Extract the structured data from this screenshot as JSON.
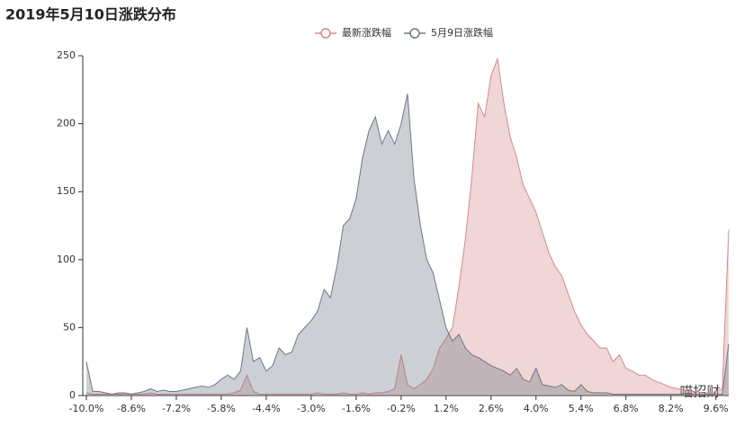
{
  "chart_data": {
    "type": "area",
    "title": "2019年5月10日涨跌分布",
    "watermark": "喵招财",
    "x": [
      -10.0,
      -9.8,
      -9.6,
      -9.4,
      -9.2,
      -9.0,
      -8.8,
      -8.6,
      -8.4,
      -8.2,
      -8.0,
      -7.8,
      -7.6,
      -7.4,
      -7.2,
      -7.0,
      -6.8,
      -6.6,
      -6.4,
      -6.2,
      -6.0,
      -5.8,
      -5.6,
      -5.4,
      -5.2,
      -5.0,
      -4.8,
      -4.6,
      -4.4,
      -4.2,
      -4.0,
      -3.8,
      -3.6,
      -3.4,
      -3.2,
      -3.0,
      -2.8,
      -2.6,
      -2.4,
      -2.2,
      -2.0,
      -1.8,
      -1.6,
      -1.4,
      -1.2,
      -1.0,
      -0.8,
      -0.6,
      -0.4,
      -0.2,
      0.0,
      0.2,
      0.4,
      0.6,
      0.8,
      1.0,
      1.2,
      1.4,
      1.6,
      1.8,
      2.0,
      2.2,
      2.4,
      2.6,
      2.8,
      3.0,
      3.2,
      3.4,
      3.6,
      3.8,
      4.0,
      4.2,
      4.4,
      4.6,
      4.8,
      5.0,
      5.2,
      5.4,
      5.6,
      5.8,
      6.0,
      6.2,
      6.4,
      6.6,
      6.8,
      7.0,
      7.2,
      7.4,
      7.6,
      7.8,
      8.0,
      8.2,
      8.4,
      8.6,
      8.8,
      9.0,
      9.2,
      9.4,
      9.6,
      9.8,
      10.0
    ],
    "series": [
      {
        "name": "最新涨跌幅",
        "color": "#d48a8a",
        "values": [
          2,
          1,
          1,
          1,
          1,
          1,
          1,
          1,
          1,
          1,
          2,
          1,
          1,
          1,
          1,
          1,
          1,
          1,
          1,
          1,
          1,
          1,
          1,
          2,
          4,
          15,
          3,
          1,
          1,
          1,
          1,
          1,
          1,
          1,
          1,
          1,
          2,
          1,
          1,
          1,
          2,
          1,
          1,
          2,
          1,
          2,
          2,
          3,
          5,
          30,
          8,
          5,
          8,
          12,
          20,
          35,
          42,
          50,
          80,
          115,
          160,
          215,
          205,
          235,
          248,
          215,
          190,
          175,
          155,
          145,
          135,
          120,
          105,
          95,
          88,
          75,
          62,
          52,
          45,
          40,
          35,
          35,
          25,
          30,
          20,
          18,
          15,
          15,
          12,
          10,
          8,
          6,
          5,
          4,
          3,
          3,
          2,
          2,
          3,
          5,
          122
        ]
      },
      {
        "name": "5月9日涨跌幅",
        "color": "#6e7886",
        "values": [
          25,
          3,
          3,
          2,
          1,
          2,
          2,
          1,
          2,
          3,
          5,
          3,
          4,
          3,
          3,
          4,
          5,
          6,
          7,
          6,
          8,
          12,
          15,
          12,
          18,
          50,
          25,
          28,
          18,
          22,
          35,
          30,
          32,
          45,
          50,
          55,
          62,
          78,
          72,
          95,
          125,
          130,
          145,
          175,
          195,
          205,
          185,
          195,
          185,
          200,
          222,
          160,
          125,
          100,
          90,
          70,
          50,
          40,
          45,
          35,
          30,
          28,
          25,
          22,
          20,
          18,
          15,
          20,
          12,
          10,
          20,
          8,
          7,
          6,
          8,
          4,
          3,
          8,
          3,
          2,
          2,
          2,
          1,
          1,
          1,
          1,
          1,
          1,
          1,
          1,
          1,
          1,
          1,
          1,
          1,
          1,
          1,
          1,
          1,
          1,
          38
        ]
      }
    ],
    "xlim": [
      -10,
      10
    ],
    "xticks": [
      {
        "value": -10,
        "label": "-10.0%"
      },
      {
        "value": -8.6,
        "label": "-8.6%"
      },
      {
        "value": -7.2,
        "label": "-7.2%"
      },
      {
        "value": -5.8,
        "label": "-5.8%"
      },
      {
        "value": -4.4,
        "label": "-4.4%"
      },
      {
        "value": -3.0,
        "label": "-3.0%"
      },
      {
        "value": -1.6,
        "label": "-1.6%"
      },
      {
        "value": -0.2,
        "label": "-0.2%"
      },
      {
        "value": 1.2,
        "label": "1.2%"
      },
      {
        "value": 2.6,
        "label": "2.6%"
      },
      {
        "value": 4.0,
        "label": "4.0%"
      },
      {
        "value": 5.4,
        "label": "5.4%"
      },
      {
        "value": 6.8,
        "label": "6.8%"
      },
      {
        "value": 8.2,
        "label": "8.2%"
      },
      {
        "value": 9.6,
        "label": "9.6%"
      }
    ],
    "ylim": [
      0,
      250
    ],
    "yticks": [
      0,
      50,
      100,
      150,
      200,
      250
    ]
  }
}
